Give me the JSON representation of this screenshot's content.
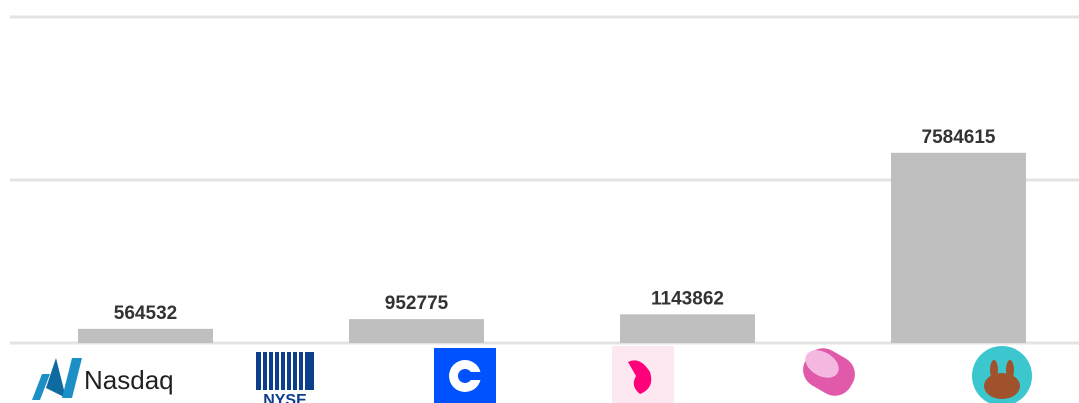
{
  "chart_data": {
    "type": "bar",
    "values": [
      564532,
      952775,
      1143862,
      7584615
    ],
    "color": "#bfbfbf",
    "ylim": [
      0,
      13000000
    ],
    "yticks": [
      0,
      6500000,
      13000000
    ],
    "grid": true
  },
  "logos": [
    "Nasdaq",
    "NYSE"
  ]
}
